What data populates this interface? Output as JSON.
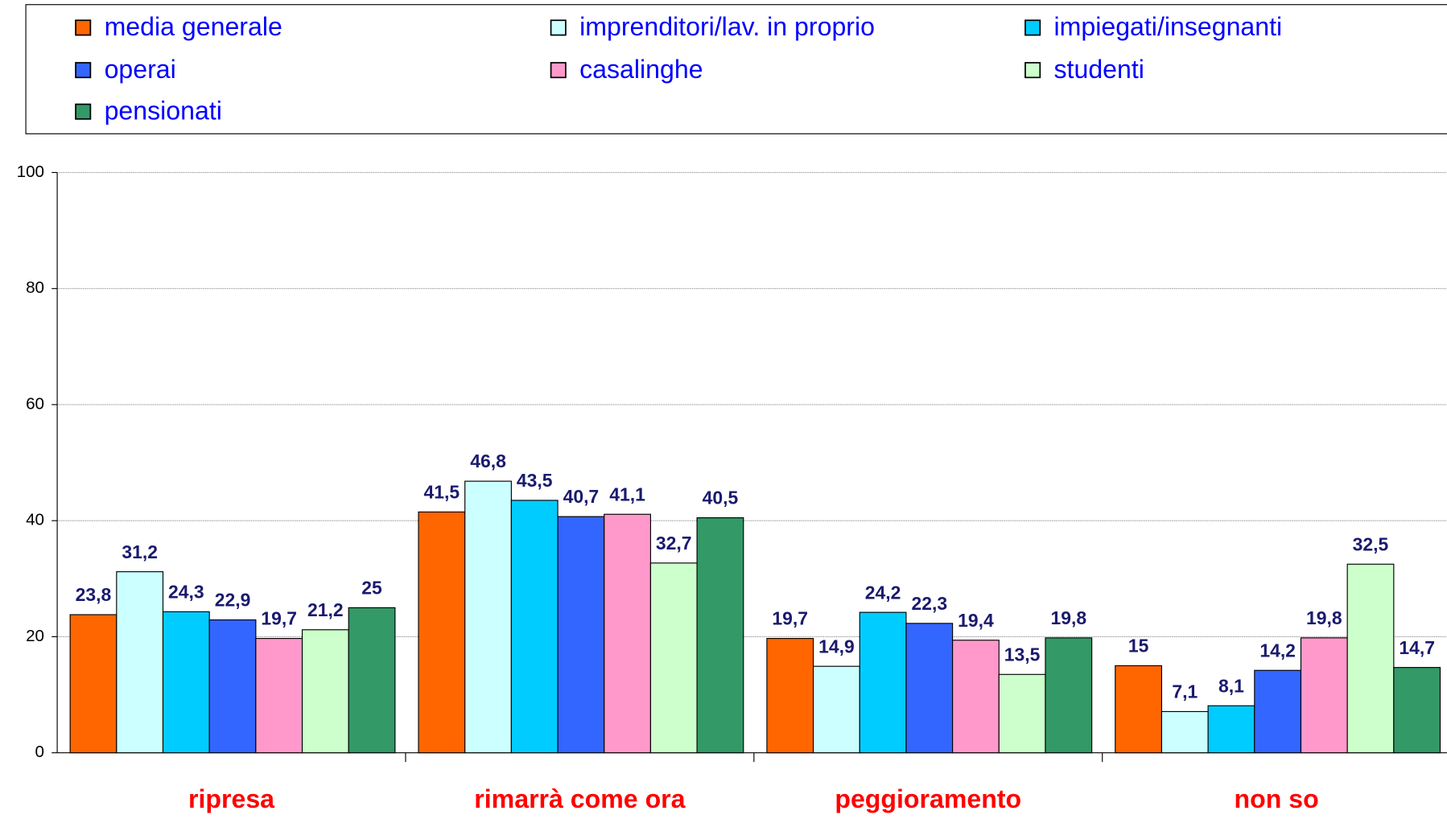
{
  "chart_data": {
    "type": "bar",
    "legend": "top",
    "categories": [
      "ripresa",
      "rimarrà come ora",
      "peggioramento",
      "non so"
    ],
    "series": [
      {
        "name": "media generale",
        "color": "#ff6600",
        "values": [
          23.8,
          41.5,
          19.7,
          15
        ],
        "value_labels": [
          "23,8",
          "41,5",
          "19,7",
          "15"
        ]
      },
      {
        "name": "imprenditori/lav. in proprio",
        "color": "#ccffff",
        "values": [
          31.2,
          46.8,
          14.9,
          7.1
        ],
        "value_labels": [
          "31,2",
          "46,8",
          "14,9",
          "7,1"
        ]
      },
      {
        "name": "impiegati/insegnanti",
        "color": "#00ccff",
        "values": [
          24.3,
          43.5,
          24.2,
          8.1
        ],
        "value_labels": [
          "24,3",
          "43,5",
          "24,2",
          "8,1"
        ]
      },
      {
        "name": "operai",
        "color": "#3366ff",
        "values": [
          22.9,
          40.7,
          22.3,
          14.2
        ],
        "value_labels": [
          "22,9",
          "40,7",
          "22,3",
          "14,2"
        ]
      },
      {
        "name": "casalinghe",
        "color": "#ff99cc",
        "values": [
          19.7,
          41.1,
          19.4,
          19.8
        ],
        "value_labels": [
          "19,7",
          "41,1",
          "19,4",
          "19,8"
        ]
      },
      {
        "name": "studenti",
        "color": "#ccffcc",
        "values": [
          21.2,
          32.7,
          13.5,
          32.5
        ],
        "value_labels": [
          "21,2",
          "32,7",
          "13,5",
          "32,5"
        ]
      },
      {
        "name": "pensionati",
        "color": "#339966",
        "values": [
          25,
          40.5,
          19.8,
          14.7
        ],
        "value_labels": [
          "25",
          "40,5",
          "19,8",
          "14,7"
        ]
      }
    ],
    "ylim": [
      0,
      100
    ],
    "yticks": [
      0,
      20,
      40,
      60,
      80,
      100
    ],
    "grid": true
  }
}
